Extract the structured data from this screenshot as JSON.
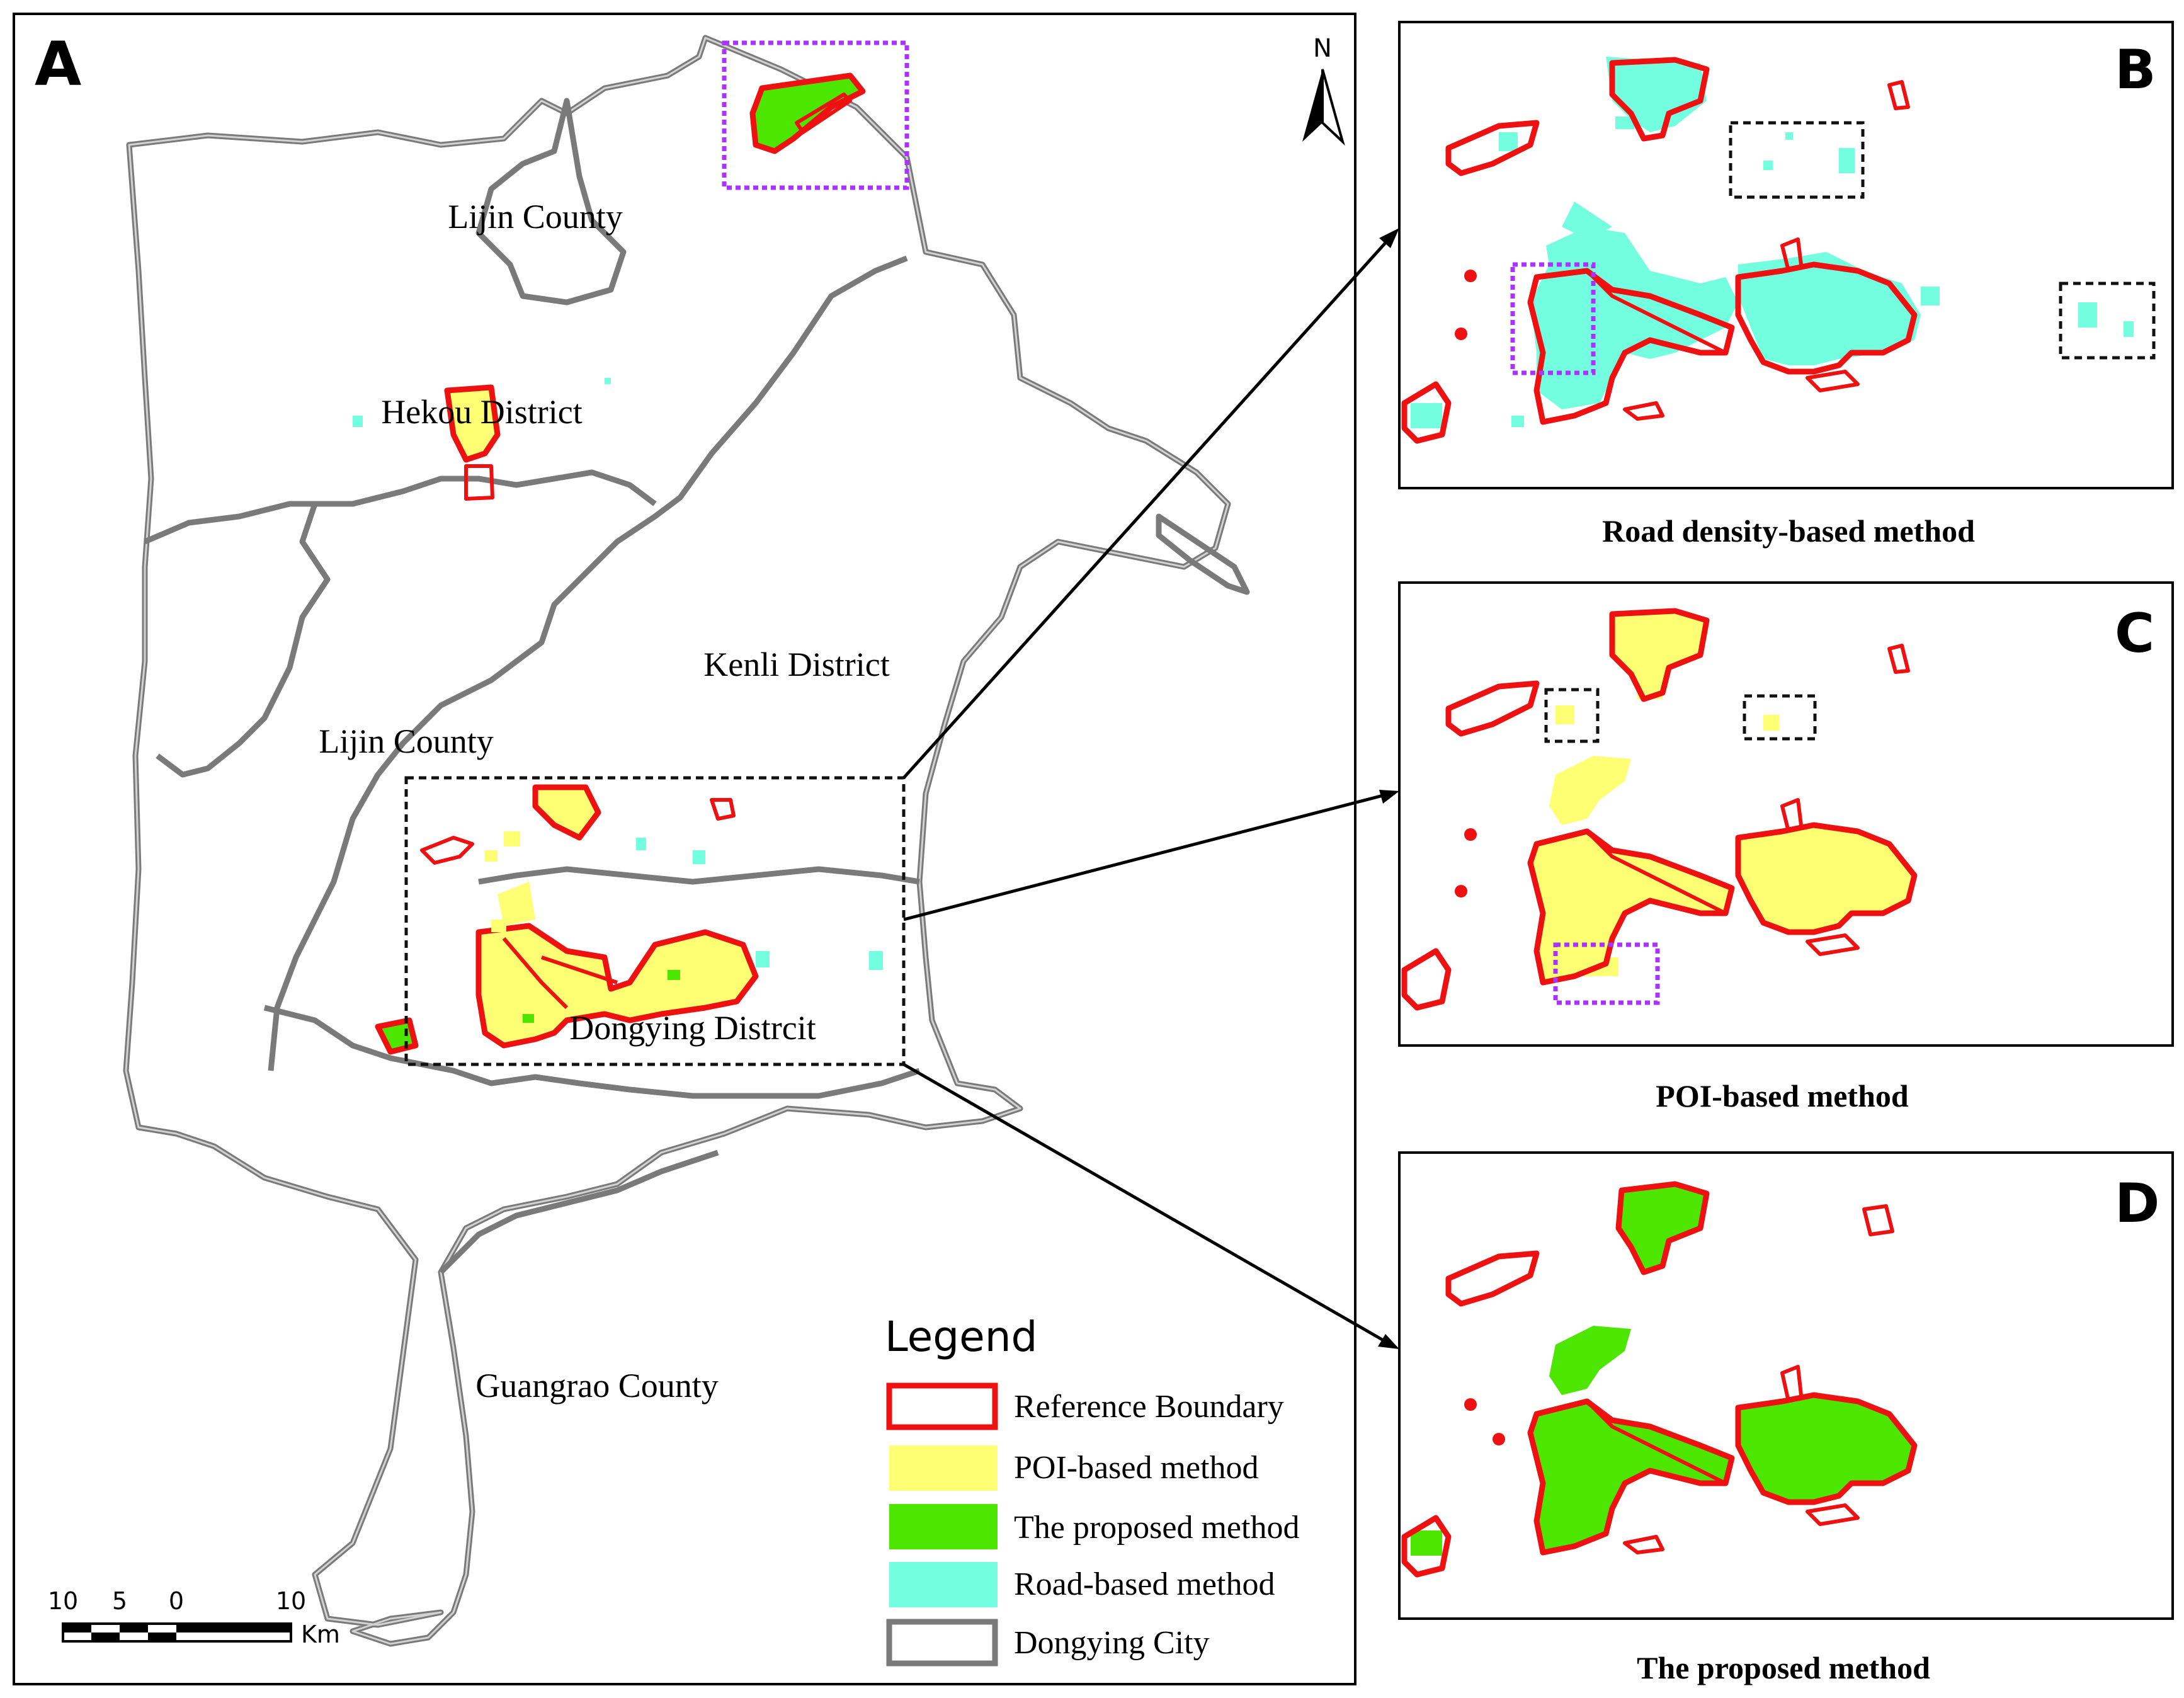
{
  "panels": {
    "a": "A",
    "b": "B",
    "c": "C",
    "d": "D"
  },
  "north_arrow": {
    "label": "N"
  },
  "places": {
    "lijin_north": "Lijin County",
    "hekou": "Hekou District",
    "kenli": "Kenli District",
    "lijin_south": "Lijin County",
    "dongying": "Dongying Distrcit",
    "guangrao": "Guangrao County"
  },
  "captions": {
    "b": "Road density-based method",
    "c": "POI-based method",
    "d": "The proposed method"
  },
  "legend": {
    "title": "Legend",
    "items": [
      {
        "label": "Reference Boundary",
        "swatch": "reference-boundary"
      },
      {
        "label": "POI-based method",
        "swatch": "poi"
      },
      {
        "label": "The proposed method",
        "swatch": "proposed"
      },
      {
        "label": "Road-based method",
        "swatch": "road"
      },
      {
        "label": "Dongying City",
        "swatch": "city-boundary"
      }
    ]
  },
  "scale_bar": {
    "ticks": [
      "10",
      "5",
      "0",
      "10"
    ],
    "unit": "Km"
  },
  "colors": {
    "reference_boundary": "#ee1111",
    "poi_based": "#ffff73",
    "proposed": "#4ce600",
    "road_based": "#73ffdf",
    "city_boundary": "#7a7a7a",
    "highlight_box": "#aa33ff",
    "inset_box": "#111111"
  }
}
